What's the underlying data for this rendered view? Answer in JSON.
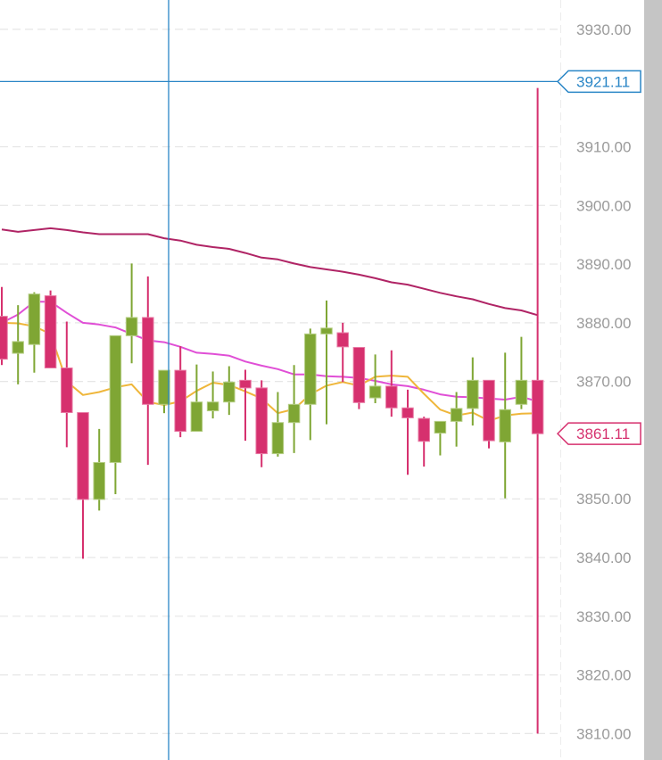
{
  "chart_data": {
    "type": "candlestick",
    "y_axis": {
      "position": "right",
      "ticks": [
        "3930.00",
        "3910.00",
        "3900.00",
        "3890.00",
        "3880.00",
        "3870.00",
        "3850.00",
        "3840.00",
        "3830.00",
        "3820.00",
        "3810.00"
      ],
      "ylim": [
        3805.5,
        3935.0
      ]
    },
    "grid": true,
    "price_tags": [
      {
        "label": "3921.11",
        "value": 3921.11,
        "color": "#2a86c6"
      },
      {
        "label": "3861.11",
        "value": 3861.11,
        "color": "#d6306e"
      }
    ],
    "colors": {
      "up": "#7fa634",
      "down": "#d6306e",
      "ma_fast": "#efb63a",
      "ma_mid": "#e04fd6",
      "ma_slow": "#b02465",
      "crosshair": "#2a86c6",
      "grid": "#e6e6e6",
      "scrollbar": "#c5c5c5"
    },
    "candles": [
      {
        "o": 3881.1,
        "h": 3886.1,
        "l": 3872.8,
        "c": 3873.8
      },
      {
        "o": 3874.8,
        "h": 3883.0,
        "l": 3869.5,
        "c": 3876.8
      },
      {
        "o": 3876.3,
        "h": 3885.2,
        "l": 3871.5,
        "c": 3884.9
      },
      {
        "o": 3884.6,
        "h": 3885.5,
        "l": 3872.3,
        "c": 3872.3
      },
      {
        "o": 3872.3,
        "h": 3880.2,
        "l": 3858.8,
        "c": 3864.7
      },
      {
        "o": 3864.7,
        "h": 3864.7,
        "l": 3839.8,
        "c": 3849.9
      },
      {
        "o": 3849.9,
        "h": 3861.9,
        "l": 3848.0,
        "c": 3856.2
      },
      {
        "o": 3856.2,
        "h": 3877.8,
        "l": 3850.8,
        "c": 3877.8
      },
      {
        "o": 3877.8,
        "h": 3890.1,
        "l": 3873.1,
        "c": 3880.9
      },
      {
        "o": 3880.9,
        "h": 3887.9,
        "l": 3855.8,
        "c": 3866.1
      },
      {
        "o": 3866.1,
        "h": 3871.9,
        "l": 3864.6,
        "c": 3871.9
      },
      {
        "o": 3871.9,
        "h": 3876.0,
        "l": 3860.5,
        "c": 3861.5
      },
      {
        "o": 3861.5,
        "h": 3872.9,
        "l": 3861.5,
        "c": 3866.5
      },
      {
        "o": 3865.0,
        "h": 3871.7,
        "l": 3863.7,
        "c": 3866.5
      },
      {
        "o": 3866.5,
        "h": 3872.6,
        "l": 3864.3,
        "c": 3869.9
      },
      {
        "o": 3870.2,
        "h": 3872.0,
        "l": 3859.9,
        "c": 3868.9
      },
      {
        "o": 3868.9,
        "h": 3870.2,
        "l": 3855.4,
        "c": 3857.7
      },
      {
        "o": 3857.7,
        "h": 3868.2,
        "l": 3857.2,
        "c": 3863.0
      },
      {
        "o": 3863.0,
        "h": 3872.8,
        "l": 3857.8,
        "c": 3866.1
      },
      {
        "o": 3866.1,
        "h": 3879.0,
        "l": 3860.0,
        "c": 3878.1
      },
      {
        "o": 3878.1,
        "h": 3883.8,
        "l": 3862.7,
        "c": 3879.1
      },
      {
        "o": 3878.3,
        "h": 3880.0,
        "l": 3869.9,
        "c": 3875.9
      },
      {
        "o": 3875.8,
        "h": 3875.8,
        "l": 3865.3,
        "c": 3866.4
      },
      {
        "o": 3867.2,
        "h": 3874.6,
        "l": 3866.3,
        "c": 3869.2
      },
      {
        "o": 3869.2,
        "h": 3875.3,
        "l": 3864.0,
        "c": 3865.5
      },
      {
        "o": 3865.5,
        "h": 3868.6,
        "l": 3854.1,
        "c": 3863.8
      },
      {
        "o": 3863.7,
        "h": 3864.0,
        "l": 3855.5,
        "c": 3859.8
      },
      {
        "o": 3861.2,
        "h": 3863.2,
        "l": 3857.4,
        "c": 3863.2
      },
      {
        "o": 3863.2,
        "h": 3868.2,
        "l": 3858.9,
        "c": 3865.4
      },
      {
        "o": 3865.4,
        "h": 3874.1,
        "l": 3862.5,
        "c": 3870.2
      },
      {
        "o": 3870.2,
        "h": 3870.2,
        "l": 3858.6,
        "c": 3859.9
      },
      {
        "o": 3859.7,
        "h": 3874.9,
        "l": 3850.1,
        "c": 3865.2
      },
      {
        "o": 3866.1,
        "h": 3877.6,
        "l": 3865.3,
        "c": 3870.2
      },
      {
        "o": 3870.2,
        "h": 3920.0,
        "l": 3810.0,
        "c": 3861.1
      }
    ],
    "ma_fast": [
      3880.0,
      3879.9,
      3879.4,
      3878.1,
      3870.0,
      3867.7,
      3868.2,
      3869.0,
      3869.5,
      3866.5,
      3866.0,
      3866.6,
      3868.4,
      3869.8,
      3869.4,
      3868.3,
      3867.1,
      3864.6,
      3865.3,
      3867.8,
      3869.3,
      3869.9,
      3869.3,
      3870.8,
      3871.0,
      3870.8,
      3867.9,
      3865.2,
      3864.2,
      3864.7,
      3863.3,
      3864.2,
      3864.5,
      3864.6
    ],
    "ma_mid": [
      3880.0,
      3881.4,
      3883.6,
      3883.6,
      3881.7,
      3880.0,
      3879.7,
      3879.2,
      3878.1,
      3877.0,
      3876.7,
      3875.9,
      3874.9,
      3874.7,
      3874.4,
      3873.4,
      3872.7,
      3872.1,
      3871.2,
      3871.2,
      3870.9,
      3870.8,
      3870.6,
      3870.1,
      3869.5,
      3869.2,
      3868.6,
      3867.8,
      3867.4,
      3867.3,
      3867.1,
      3866.9,
      3867.4,
      3866.6
    ],
    "ma_slow": [
      3895.9,
      3895.5,
      3895.8,
      3896.1,
      3895.8,
      3895.4,
      3895.1,
      3895.1,
      3895.1,
      3895.1,
      3894.4,
      3894.0,
      3893.3,
      3892.9,
      3892.6,
      3891.9,
      3891.1,
      3890.8,
      3890.1,
      3889.5,
      3889.1,
      3888.7,
      3888.2,
      3887.6,
      3886.9,
      3886.5,
      3885.8,
      3885.1,
      3884.5,
      3884.0,
      3883.2,
      3882.5,
      3882.1,
      3881.3
    ]
  }
}
